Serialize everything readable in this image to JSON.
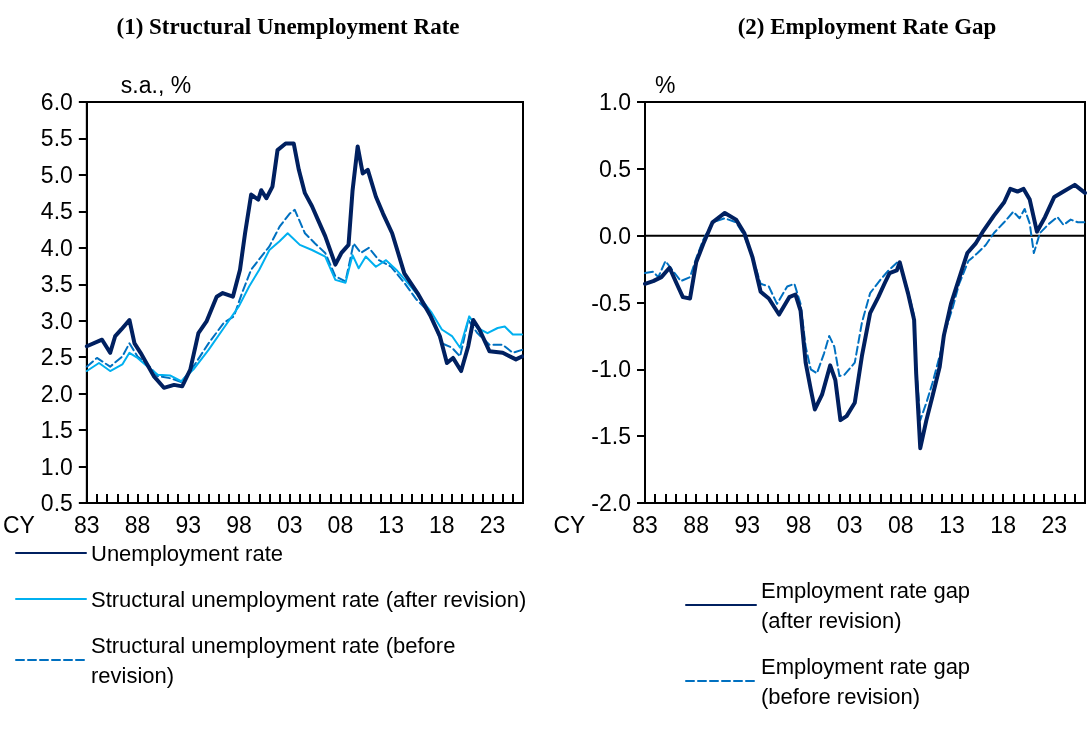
{
  "chart_data": [
    {
      "type": "line",
      "title": "(1) Structural Unemployment Rate",
      "ylabel": "s.a., %",
      "xlabel": "CY",
      "legend": "bottom",
      "marker": "none",
      "grid": false,
      "xlim": [
        1983,
        2026
      ],
      "xticks": [
        {
          "value": 1983,
          "label": "83"
        },
        {
          "value": 1984,
          "label": null
        },
        {
          "value": 1985,
          "label": null
        },
        {
          "value": 1986,
          "label": null
        },
        {
          "value": 1987,
          "label": null
        },
        {
          "value": 1988,
          "label": "88"
        },
        {
          "value": 1989,
          "label": null
        },
        {
          "value": 1990,
          "label": null
        },
        {
          "value": 1991,
          "label": null
        },
        {
          "value": 1992,
          "label": null
        },
        {
          "value": 1993,
          "label": "93"
        },
        {
          "value": 1994,
          "label": null
        },
        {
          "value": 1995,
          "label": null
        },
        {
          "value": 1996,
          "label": null
        },
        {
          "value": 1997,
          "label": null
        },
        {
          "value": 1998,
          "label": "98"
        },
        {
          "value": 1999,
          "label": null
        },
        {
          "value": 2000,
          "label": null
        },
        {
          "value": 2001,
          "label": null
        },
        {
          "value": 2002,
          "label": null
        },
        {
          "value": 2003,
          "label": "03"
        },
        {
          "value": 2004,
          "label": null
        },
        {
          "value": 2005,
          "label": null
        },
        {
          "value": 2006,
          "label": null
        },
        {
          "value": 2007,
          "label": null
        },
        {
          "value": 2008,
          "label": "08"
        },
        {
          "value": 2009,
          "label": null
        },
        {
          "value": 2010,
          "label": null
        },
        {
          "value": 2011,
          "label": null
        },
        {
          "value": 2012,
          "label": null
        },
        {
          "value": 2013,
          "label": "13"
        },
        {
          "value": 2014,
          "label": null
        },
        {
          "value": 2015,
          "label": null
        },
        {
          "value": 2016,
          "label": null
        },
        {
          "value": 2017,
          "label": null
        },
        {
          "value": 2018,
          "label": "18"
        },
        {
          "value": 2019,
          "label": null
        },
        {
          "value": 2020,
          "label": null
        },
        {
          "value": 2021,
          "label": null
        },
        {
          "value": 2022,
          "label": null
        },
        {
          "value": 2023,
          "label": "23"
        },
        {
          "value": 2024,
          "label": null
        },
        {
          "value": 2025,
          "label": null
        },
        {
          "value": 2026,
          "label": null
        }
      ],
      "ylim": [
        0.5,
        6
      ],
      "yticks": [
        {
          "value": 0.5,
          "label": "0.5"
        },
        {
          "value": 1,
          "label": "1.0"
        },
        {
          "value": 1.5,
          "label": "1.5"
        },
        {
          "value": 2,
          "label": "2.0"
        },
        {
          "value": 2.5,
          "label": "2.5"
        },
        {
          "value": 3,
          "label": "3.0"
        },
        {
          "value": 3.5,
          "label": "3.5"
        },
        {
          "value": 4,
          "label": "4.0"
        },
        {
          "value": 4.5,
          "label": "4.5"
        },
        {
          "value": 5,
          "label": "5.0"
        },
        {
          "value": 5.5,
          "label": "5.5"
        },
        {
          "value": 6,
          "label": "6.0"
        }
      ],
      "series": [
        {
          "name": "Unemployment rate",
          "color": "#002060",
          "line_style": "solid",
          "x": [
            1983.0,
            1984.5,
            1985.3,
            1985.8,
            1986.4,
            1987.2,
            1987.7,
            1988.3,
            1989.6,
            1990.6,
            1991.6,
            1992.4,
            1993.2,
            1994.0,
            1994.8,
            1995.8,
            1996.4,
            1997.4,
            1998.1,
            1998.6,
            1999.2,
            1999.9,
            2000.2,
            2000.7,
            2001.3,
            2001.8,
            2002.6,
            2003.4,
            2003.9,
            2004.5,
            2005.2,
            2005.8,
            2006.5,
            2007.5,
            2008.1,
            2008.8,
            2009.2,
            2009.7,
            2010.2,
            2010.7,
            2011.5,
            2012.2,
            2013.1,
            2014.3,
            2015.6,
            2016.9,
            2017.8,
            2018.5,
            2019.1,
            2019.9,
            2020.6,
            2021.1,
            2021.7,
            2022.7,
            2024.0,
            2025.3,
            2025.9
          ],
          "values": [
            2.65,
            2.74,
            2.56,
            2.79,
            2.88,
            3.01,
            2.69,
            2.56,
            2.24,
            2.08,
            2.12,
            2.1,
            2.33,
            2.83,
            2.99,
            3.33,
            3.38,
            3.33,
            3.7,
            4.2,
            4.73,
            4.66,
            4.79,
            4.68,
            4.84,
            5.34,
            5.43,
            5.43,
            5.07,
            4.75,
            4.57,
            4.38,
            4.16,
            3.77,
            3.93,
            4.04,
            4.79,
            5.39,
            5.02,
            5.07,
            4.7,
            4.47,
            4.2,
            3.65,
            3.38,
            3.06,
            2.79,
            2.42,
            2.49,
            2.31,
            2.65,
            3.01,
            2.88,
            2.58,
            2.56,
            2.47,
            2.51
          ]
        },
        {
          "name": "Structural unemployment rate (after revision)",
          "color": "#00b0f0",
          "line_style": "solid",
          "x": [
            1983.0,
            1984.2,
            1985.3,
            1986.5,
            1987.2,
            1988.0,
            1989.0,
            1990.0,
            1991.2,
            1992.3,
            1993.5,
            1995.0,
            1996.5,
            1998.0,
            1999.0,
            2000.0,
            2001.0,
            2002.0,
            2002.8,
            2004.0,
            2005.2,
            2006.5,
            2007.5,
            2008.5,
            2009.2,
            2009.8,
            2010.5,
            2011.5,
            2012.5,
            2013.5,
            2014.5,
            2016.0,
            2017.0,
            2018.0,
            2019.0,
            2019.8,
            2020.7,
            2021.5,
            2022.5,
            2023.5,
            2024.2,
            2025.0,
            2025.9
          ],
          "values": [
            2.31,
            2.42,
            2.31,
            2.4,
            2.56,
            2.49,
            2.37,
            2.26,
            2.25,
            2.17,
            2.33,
            2.6,
            2.9,
            3.2,
            3.47,
            3.7,
            3.97,
            4.09,
            4.2,
            4.04,
            3.97,
            3.88,
            3.56,
            3.52,
            3.9,
            3.72,
            3.88,
            3.74,
            3.83,
            3.7,
            3.54,
            3.29,
            3.11,
            2.88,
            2.79,
            2.63,
            3.06,
            2.9,
            2.83,
            2.9,
            2.92,
            2.81,
            2.81
          ]
        },
        {
          "name": "Structural unemployment rate (before revision)",
          "color": "#0070c0",
          "line_style": "dashed",
          "x": [
            1983.0,
            1984.0,
            1985.3,
            1986.5,
            1987.2,
            1988.0,
            1989.0,
            1990.0,
            1991.3,
            1992.3,
            1993.5,
            1995.0,
            1996.5,
            1997.5,
            1998.3,
            1999.2,
            2000.2,
            2001.0,
            2002.0,
            2003.0,
            2003.5,
            2004.5,
            2005.5,
            2006.5,
            2007.5,
            2008.5,
            2009.3,
            2010.0,
            2010.8,
            2011.8,
            2013.0,
            2014.3,
            2015.5,
            2016.8,
            2018.0,
            2019.0,
            2019.8,
            2020.6,
            2021.5,
            2022.7,
            2024.0,
            2025.0,
            2025.9
          ],
          "values": [
            2.37,
            2.49,
            2.37,
            2.51,
            2.69,
            2.51,
            2.4,
            2.24,
            2.21,
            2.16,
            2.37,
            2.69,
            2.97,
            3.06,
            3.38,
            3.7,
            3.88,
            4.02,
            4.29,
            4.47,
            4.52,
            4.2,
            4.06,
            3.93,
            3.61,
            3.54,
            4.06,
            3.93,
            4.0,
            3.83,
            3.74,
            3.52,
            3.29,
            3.11,
            2.69,
            2.63,
            2.51,
            3.01,
            2.83,
            2.67,
            2.67,
            2.56,
            2.6
          ]
        }
      ]
    },
    {
      "type": "line",
      "title": "(2) Employment Rate Gap",
      "ylabel": "%",
      "xlabel": "CY",
      "legend": "bottom",
      "marker": "none",
      "grid": false,
      "xlim": [
        1983,
        2026
      ],
      "xticks": [
        {
          "value": 1983,
          "label": "83"
        },
        {
          "value": 1984,
          "label": null
        },
        {
          "value": 1985,
          "label": null
        },
        {
          "value": 1986,
          "label": null
        },
        {
          "value": 1987,
          "label": null
        },
        {
          "value": 1988,
          "label": "88"
        },
        {
          "value": 1989,
          "label": null
        },
        {
          "value": 1990,
          "label": null
        },
        {
          "value": 1991,
          "label": null
        },
        {
          "value": 1992,
          "label": null
        },
        {
          "value": 1993,
          "label": "93"
        },
        {
          "value": 1994,
          "label": null
        },
        {
          "value": 1995,
          "label": null
        },
        {
          "value": 1996,
          "label": null
        },
        {
          "value": 1997,
          "label": null
        },
        {
          "value": 1998,
          "label": "98"
        },
        {
          "value": 1999,
          "label": null
        },
        {
          "value": 2000,
          "label": null
        },
        {
          "value": 2001,
          "label": null
        },
        {
          "value": 2002,
          "label": null
        },
        {
          "value": 2003,
          "label": "03"
        },
        {
          "value": 2004,
          "label": null
        },
        {
          "value": 2005,
          "label": null
        },
        {
          "value": 2006,
          "label": null
        },
        {
          "value": 2007,
          "label": null
        },
        {
          "value": 2008,
          "label": "08"
        },
        {
          "value": 2009,
          "label": null
        },
        {
          "value": 2010,
          "label": null
        },
        {
          "value": 2011,
          "label": null
        },
        {
          "value": 2012,
          "label": null
        },
        {
          "value": 2013,
          "label": "13"
        },
        {
          "value": 2014,
          "label": null
        },
        {
          "value": 2015,
          "label": null
        },
        {
          "value": 2016,
          "label": null
        },
        {
          "value": 2017,
          "label": null
        },
        {
          "value": 2018,
          "label": "18"
        },
        {
          "value": 2019,
          "label": null
        },
        {
          "value": 2020,
          "label": null
        },
        {
          "value": 2021,
          "label": null
        },
        {
          "value": 2022,
          "label": null
        },
        {
          "value": 2023,
          "label": "23"
        },
        {
          "value": 2024,
          "label": null
        },
        {
          "value": 2025,
          "label": null
        },
        {
          "value": 2026,
          "label": null
        }
      ],
      "ylim": [
        -2,
        1
      ],
      "yticks": [
        {
          "value": -2,
          "label": "-2.0"
        },
        {
          "value": -1.5,
          "label": "-1.5"
        },
        {
          "value": -1,
          "label": "-1.0"
        },
        {
          "value": -0.5,
          "label": "-0.5"
        },
        {
          "value": 0,
          "label": "0.0"
        },
        {
          "value": 0.5,
          "label": "0.5"
        },
        {
          "value": 1,
          "label": "1.0"
        }
      ],
      "ref_lines": [
        {
          "axis": "y",
          "value": 0,
          "color": "#000000"
        }
      ],
      "series": [
        {
          "name": "Employment rate gap (after revision)",
          "color": "#002060",
          "line_style": "solid",
          "x": [
            1983.0,
            1983.8,
            1984.6,
            1985.4,
            1986.1,
            1986.7,
            1987.4,
            1988.0,
            1988.7,
            1989.6,
            1990.8,
            1991.9,
            1992.7,
            1993.5,
            1994.3,
            1995.1,
            1996.1,
            1997.1,
            1997.7,
            1998.2,
            1998.7,
            1999.2,
            1999.6,
            2000.3,
            2001.1,
            2001.6,
            2002.1,
            2002.7,
            2003.5,
            2004.2,
            2005.0,
            2005.8,
            2006.4,
            2006.9,
            2007.6,
            2007.9,
            2008.7,
            2009.3,
            2009.5,
            2009.9,
            2010.5,
            2011.1,
            2011.8,
            2012.2,
            2012.9,
            2013.7,
            2014.5,
            2015.3,
            2016.1,
            2017.1,
            2018.1,
            2018.7,
            2019.4,
            2020.0,
            2020.6,
            2021.3,
            2022.1,
            2023.0,
            2023.9,
            2025.0,
            2026.0
          ],
          "values": [
            -0.36,
            -0.34,
            -0.31,
            -0.24,
            -0.36,
            -0.46,
            -0.47,
            -0.2,
            -0.06,
            0.1,
            0.17,
            0.12,
            0.02,
            -0.16,
            -0.42,
            -0.47,
            -0.59,
            -0.46,
            -0.44,
            -0.56,
            -0.95,
            -1.15,
            -1.3,
            -1.19,
            -0.97,
            -1.08,
            -1.38,
            -1.35,
            -1.25,
            -0.9,
            -0.58,
            -0.46,
            -0.36,
            -0.28,
            -0.26,
            -0.2,
            -0.43,
            -0.63,
            -1.03,
            -1.59,
            -1.38,
            -1.2,
            -0.98,
            -0.75,
            -0.51,
            -0.32,
            -0.13,
            -0.06,
            0.04,
            0.15,
            0.25,
            0.35,
            0.33,
            0.35,
            0.27,
            0.03,
            0.14,
            0.29,
            0.33,
            0.38,
            0.32
          ]
        },
        {
          "name": "Employment rate gap (before revision)",
          "color": "#0070c0",
          "line_style": "dashed",
          "x": [
            1983.0,
            1983.8,
            1984.3,
            1985.0,
            1985.7,
            1986.5,
            1987.4,
            1988.0,
            1988.7,
            1989.6,
            1990.8,
            1991.9,
            1992.7,
            1993.5,
            1994.3,
            1995.1,
            1995.9,
            1996.9,
            1997.6,
            1998.2,
            1998.7,
            1999.2,
            1999.8,
            2000.5,
            2001.0,
            2001.5,
            2002.0,
            2002.5,
            2003.5,
            2004.2,
            2005.0,
            2006.0,
            2006.8,
            2007.8,
            2008.7,
            2009.3,
            2009.5,
            2009.9,
            2010.5,
            2011.1,
            2011.8,
            2012.4,
            2013.1,
            2013.7,
            2014.6,
            2015.5,
            2016.3,
            2017.1,
            2018.1,
            2019.0,
            2019.6,
            2020.1,
            2020.6,
            2021.0,
            2021.6,
            2022.5,
            2023.3,
            2023.9,
            2024.6,
            2025.3,
            2026.0
          ],
          "values": [
            -0.28,
            -0.27,
            -0.31,
            -0.19,
            -0.26,
            -0.34,
            -0.31,
            -0.17,
            -0.03,
            0.1,
            0.13,
            0.1,
            0.0,
            -0.16,
            -0.36,
            -0.38,
            -0.51,
            -0.38,
            -0.36,
            -0.51,
            -0.83,
            -1.0,
            -1.03,
            -0.88,
            -0.75,
            -0.83,
            -1.05,
            -1.04,
            -0.95,
            -0.65,
            -0.43,
            -0.33,
            -0.26,
            -0.19,
            -0.41,
            -0.6,
            -0.98,
            -1.38,
            -1.25,
            -1.1,
            -0.9,
            -0.7,
            -0.53,
            -0.36,
            -0.19,
            -0.13,
            -0.07,
            0.02,
            0.1,
            0.18,
            0.13,
            0.2,
            0.09,
            -0.13,
            0.02,
            0.09,
            0.14,
            0.08,
            0.12,
            0.1,
            0.1
          ]
        }
      ]
    }
  ]
}
